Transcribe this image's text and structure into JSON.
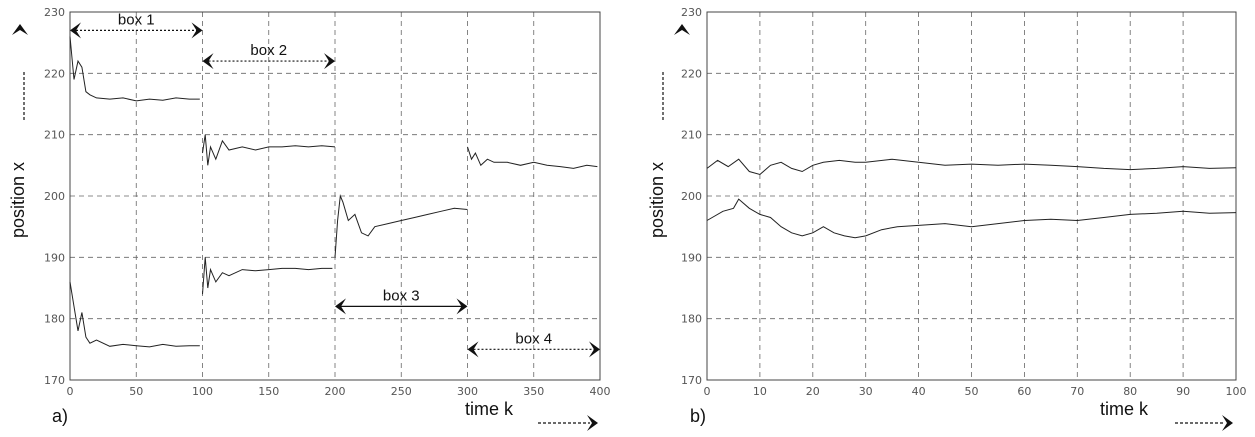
{
  "chart_data": [
    {
      "type": "line",
      "panel_label": "a)",
      "xlabel": "time k",
      "ylabel": "position x",
      "xlim": [
        0,
        400
      ],
      "ylim": [
        170,
        230
      ],
      "xticks": [
        "0",
        "50",
        "100",
        "150",
        "200",
        "250",
        "300",
        "350",
        "400"
      ],
      "yticks": [
        "170",
        "180",
        "190",
        "200",
        "210",
        "220",
        "230"
      ],
      "grid": true,
      "annotations": [
        {
          "label": "box 1",
          "from": 0,
          "to": 100,
          "y": 227
        },
        {
          "label": "box 2",
          "from": 100,
          "to": 200,
          "y": 222
        },
        {
          "label": "box 3",
          "from": 200,
          "to": 300,
          "y": 182
        },
        {
          "label": "box 4",
          "from": 300,
          "to": 400,
          "y": 175
        }
      ],
      "series": [
        {
          "segments": [
            [
              [
                0,
                226
              ],
              [
                3,
                219
              ],
              [
                6,
                222
              ],
              [
                9,
                221
              ],
              [
                12,
                217
              ],
              [
                15,
                216.5
              ],
              [
                20,
                216
              ],
              [
                30,
                215.8
              ],
              [
                40,
                216
              ],
              [
                50,
                215.5
              ],
              [
                60,
                215.8
              ],
              [
                70,
                215.6
              ],
              [
                80,
                216
              ],
              [
                90,
                215.8
              ],
              [
                98,
                215.8
              ]
            ],
            [
              [
                100,
                207
              ],
              [
                102,
                210
              ],
              [
                104,
                205
              ],
              [
                106,
                208
              ],
              [
                110,
                206
              ],
              [
                115,
                209
              ],
              [
                120,
                207.5
              ],
              [
                130,
                208
              ],
              [
                140,
                207.5
              ],
              [
                150,
                208
              ],
              [
                160,
                208
              ],
              [
                170,
                208.2
              ],
              [
                180,
                208
              ],
              [
                190,
                208.2
              ],
              [
                200,
                208
              ]
            ],
            [
              [
                300,
                208
              ],
              [
                303,
                206
              ],
              [
                306,
                207
              ],
              [
                310,
                205
              ],
              [
                315,
                206
              ],
              [
                320,
                205.5
              ],
              [
                330,
                205.5
              ],
              [
                340,
                205
              ],
              [
                350,
                205.5
              ],
              [
                360,
                205
              ],
              [
                370,
                204.8
              ],
              [
                380,
                204.5
              ],
              [
                390,
                205
              ],
              [
                398,
                204.8
              ]
            ]
          ]
        },
        {
          "segments": [
            [
              [
                0,
                186
              ],
              [
                3,
                182
              ],
              [
                6,
                178
              ],
              [
                9,
                181
              ],
              [
                12,
                177
              ],
              [
                15,
                176
              ],
              [
                20,
                176.5
              ],
              [
                30,
                175.5
              ],
              [
                40,
                175.8
              ],
              [
                50,
                175.6
              ],
              [
                60,
                175.4
              ],
              [
                70,
                175.8
              ],
              [
                80,
                175.5
              ],
              [
                90,
                175.6
              ],
              [
                98,
                175.6
              ]
            ],
            [
              [
                100,
                184
              ],
              [
                102,
                190
              ],
              [
                104,
                185
              ],
              [
                106,
                188
              ],
              [
                110,
                186
              ],
              [
                115,
                187.5
              ],
              [
                120,
                187
              ],
              [
                130,
                188
              ],
              [
                140,
                187.8
              ],
              [
                150,
                188
              ],
              [
                160,
                188.2
              ],
              [
                170,
                188.2
              ],
              [
                180,
                188
              ],
              [
                190,
                188.2
              ],
              [
                198,
                188.2
              ]
            ],
            [
              [
                200,
                190
              ],
              [
                202,
                196
              ],
              [
                204,
                200
              ],
              [
                206,
                199
              ],
              [
                210,
                196
              ],
              [
                215,
                197
              ],
              [
                220,
                194
              ],
              [
                225,
                193.5
              ],
              [
                230,
                195
              ],
              [
                240,
                195.5
              ],
              [
                250,
                196
              ],
              [
                260,
                196.5
              ],
              [
                270,
                197
              ],
              [
                280,
                197.5
              ],
              [
                290,
                198
              ],
              [
                300,
                197.8
              ]
            ]
          ]
        }
      ]
    },
    {
      "type": "line",
      "panel_label": "b)",
      "xlabel": "time k",
      "ylabel": "position x",
      "xlim": [
        0,
        100
      ],
      "ylim": [
        170,
        230
      ],
      "xticks": [
        "0",
        "10",
        "20",
        "30",
        "40",
        "50",
        "60",
        "70",
        "80",
        "90",
        "100"
      ],
      "yticks": [
        "170",
        "180",
        "190",
        "200",
        "210",
        "220",
        "230"
      ],
      "grid": true,
      "series": [
        {
          "segments": [
            [
              [
                0,
                204.5
              ],
              [
                2,
                205.8
              ],
              [
                4,
                204.8
              ],
              [
                6,
                206
              ],
              [
                8,
                204
              ],
              [
                10,
                203.5
              ],
              [
                12,
                205
              ],
              [
                14,
                205.5
              ],
              [
                16,
                204.5
              ],
              [
                18,
                204
              ],
              [
                20,
                205
              ],
              [
                22,
                205.5
              ],
              [
                25,
                205.8
              ],
              [
                28,
                205.5
              ],
              [
                30,
                205.5
              ],
              [
                35,
                206
              ],
              [
                40,
                205.5
              ],
              [
                45,
                205
              ],
              [
                50,
                205.2
              ],
              [
                55,
                205
              ],
              [
                60,
                205.2
              ],
              [
                65,
                205
              ],
              [
                70,
                204.8
              ],
              [
                75,
                204.5
              ],
              [
                80,
                204.3
              ],
              [
                85,
                204.5
              ],
              [
                90,
                204.8
              ],
              [
                95,
                204.5
              ],
              [
                100,
                204.6
              ]
            ]
          ]
        },
        {
          "segments": [
            [
              [
                0,
                196
              ],
              [
                3,
                197.5
              ],
              [
                5,
                198
              ],
              [
                6,
                199.5
              ],
              [
                8,
                198
              ],
              [
                10,
                197
              ],
              [
                12,
                196.5
              ],
              [
                14,
                195
              ],
              [
                16,
                194
              ],
              [
                18,
                193.5
              ],
              [
                20,
                194
              ],
              [
                22,
                195
              ],
              [
                24,
                194
              ],
              [
                26,
                193.5
              ],
              [
                28,
                193.2
              ],
              [
                30,
                193.5
              ],
              [
                33,
                194.5
              ],
              [
                36,
                195
              ],
              [
                40,
                195.2
              ],
              [
                45,
                195.5
              ],
              [
                50,
                195
              ],
              [
                55,
                195.5
              ],
              [
                60,
                196
              ],
              [
                65,
                196.2
              ],
              [
                70,
                196
              ],
              [
                75,
                196.5
              ],
              [
                80,
                197
              ],
              [
                85,
                197.2
              ],
              [
                90,
                197.5
              ],
              [
                95,
                197.2
              ],
              [
                100,
                197.3
              ]
            ]
          ]
        }
      ]
    }
  ]
}
